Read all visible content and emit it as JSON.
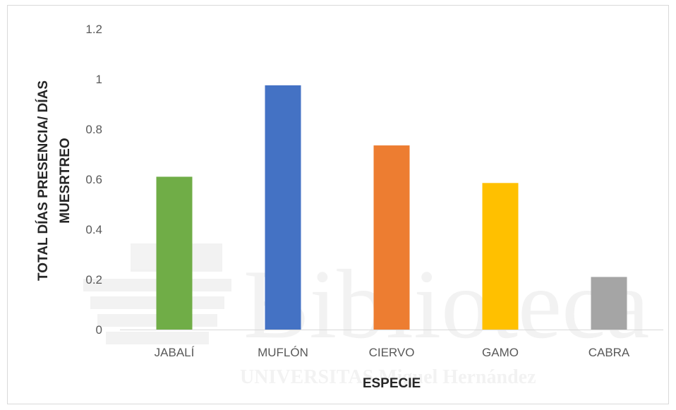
{
  "chart_data": {
    "type": "bar",
    "categories": [
      "JABALÍ",
      "MUFLÓN",
      "CIERVO",
      "GAMO",
      "CABRA"
    ],
    "values": [
      0.61,
      0.975,
      0.735,
      0.585,
      0.21
    ],
    "colors": [
      "#70ad47",
      "#4472c4",
      "#ed7d31",
      "#ffc000",
      "#a5a5a5"
    ],
    "title": "",
    "xlabel": "ESPECIE",
    "ylabel_lines": [
      "TOTAL DÍAS PRESENCIA/ DÍAS",
      "MUESRTREO"
    ],
    "ylim": [
      0,
      1.2
    ],
    "yticks": [
      "0",
      "0.2",
      "0.4",
      "0.6",
      "0.8",
      "1",
      "1.2"
    ],
    "grid": false,
    "legend": "none"
  },
  "watermark": {
    "title": "Biblioteca",
    "subtitle": "UNIVERSITAS Miguel Hernández"
  }
}
